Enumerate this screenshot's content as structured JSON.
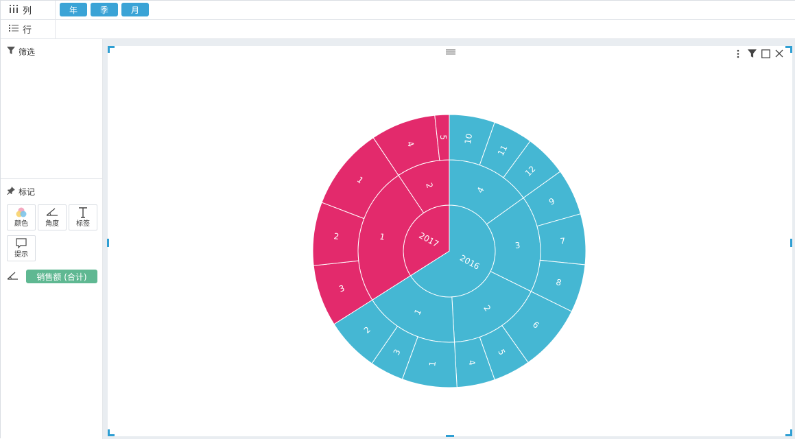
{
  "shelves": {
    "columns": {
      "label": "列",
      "pills": [
        "年",
        "季",
        "月"
      ]
    },
    "rows": {
      "label": "行"
    }
  },
  "sidebar": {
    "filter_title": "筛选",
    "marks_title": "标记",
    "mark_buttons": [
      {
        "label": "颜色",
        "icon": "color-icon"
      },
      {
        "label": "角度",
        "icon": "angle-icon"
      },
      {
        "label": "标签",
        "icon": "text-icon"
      },
      {
        "label": "提示",
        "icon": "tooltip-icon"
      }
    ],
    "angle_field": "销售额 (合计)"
  },
  "colors": {
    "accent": "#3aa3d6",
    "y2017": "#e32a6c",
    "y2016": "#45b7d3",
    "field": "#5fb892"
  },
  "chart_data": {
    "type": "sunburst",
    "title": "",
    "levels": [
      "年",
      "季",
      "月"
    ],
    "measure": "销售额 (合计)",
    "hierarchy": [
      {
        "name": "2016",
        "value": 66.0,
        "children": [
          {
            "name": "4",
            "value": 15.1,
            "children": [
              {
                "name": "10",
                "value": 5.4
              },
              {
                "name": "11",
                "value": 4.7
              },
              {
                "name": "12",
                "value": 5.0
              }
            ]
          },
          {
            "name": "3",
            "value": 17.2,
            "children": [
              {
                "name": "9",
                "value": 5.5
              },
              {
                "name": "7",
                "value": 6.0
              },
              {
                "name": "8",
                "value": 5.7
              }
            ]
          },
          {
            "name": "2",
            "value": 16.8,
            "children": [
              {
                "name": "6",
                "value": 7.9
              },
              {
                "name": "5",
                "value": 4.4
              },
              {
                "name": "4",
                "value": 4.5
              }
            ]
          },
          {
            "name": "1",
            "value": 16.9,
            "children": [
              {
                "name": "1",
                "value": 6.5
              },
              {
                "name": "3",
                "value": 4.0
              },
              {
                "name": "2",
                "value": 6.4
              }
            ]
          }
        ]
      },
      {
        "name": "2017",
        "value": 34.0,
        "children": [
          {
            "name": "1",
            "value": 24.6,
            "children": [
              {
                "name": "3",
                "value": 7.3
              },
              {
                "name": "2",
                "value": 7.5
              },
              {
                "name": "1",
                "value": 9.8
              }
            ]
          },
          {
            "name": "2",
            "value": 9.4,
            "children": [
              {
                "name": "4",
                "value": 7.7
              },
              {
                "name": "5",
                "value": 1.7
              }
            ]
          }
        ]
      }
    ]
  }
}
